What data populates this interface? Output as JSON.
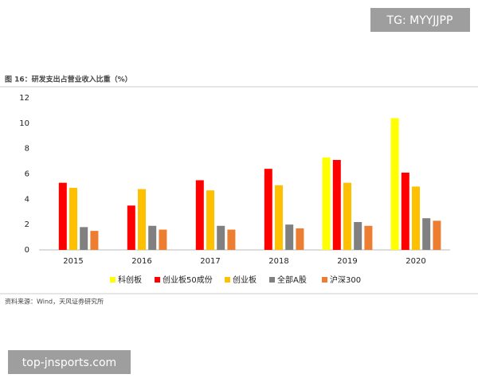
{
  "chart_data": {
    "type": "bar",
    "title": "图 16：研发支出占营业收入比重（%）",
    "source": "资料来源：Wind，天风证券研究所",
    "categories": [
      "2015",
      "2016",
      "2017",
      "2018",
      "2019",
      "2020"
    ],
    "series": [
      {
        "name": "科创板",
        "color": "#ffff00",
        "values": [
          null,
          null,
          null,
          null,
          7.3,
          10.4
        ]
      },
      {
        "name": "创业板50成份",
        "color": "#ff0000",
        "values": [
          5.3,
          3.5,
          5.5,
          6.4,
          7.1,
          6.1
        ]
      },
      {
        "name": "创业板",
        "color": "#ffc000",
        "values": [
          4.9,
          4.8,
          4.7,
          5.1,
          5.3,
          5.0
        ]
      },
      {
        "name": "全部A股",
        "color": "#808080",
        "values": [
          1.8,
          1.9,
          1.9,
          2.0,
          2.2,
          2.5
        ]
      },
      {
        "name": "沪深300",
        "color": "#ed7d31",
        "values": [
          1.5,
          1.6,
          1.6,
          1.7,
          1.9,
          2.3
        ]
      }
    ],
    "ylim": [
      0,
      12
    ],
    "yticks": [
      0,
      2,
      4,
      6,
      8,
      10,
      12
    ],
    "grid": false,
    "legend": "bottom"
  },
  "watermarks": [
    "TG: MYYJJPP",
    "top-jnsports.com"
  ]
}
